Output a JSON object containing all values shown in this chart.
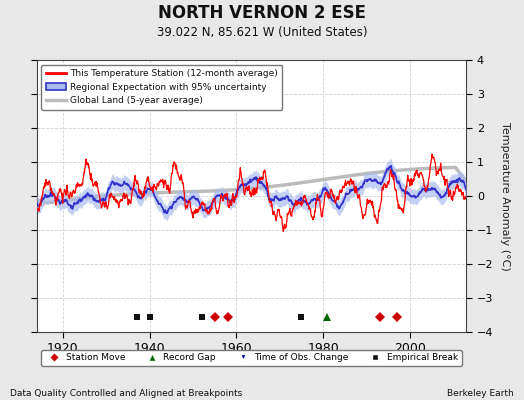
{
  "title": "NORTH VERNON 2 ESE",
  "subtitle": "39.022 N, 85.621 W (United States)",
  "ylabel": "Temperature Anomaly (°C)",
  "xlabel_bottom": "Data Quality Controlled and Aligned at Breakpoints",
  "xlabel_bottomright": "Berkeley Earth",
  "ylim": [
    -4,
    4
  ],
  "xlim": [
    1914,
    2013
  ],
  "xticks": [
    1920,
    1940,
    1960,
    1980,
    2000
  ],
  "yticks": [
    -4,
    -3,
    -2,
    -1,
    0,
    1,
    2,
    3,
    4
  ],
  "bg_color": "#e8e8e8",
  "plot_bg_color": "#ffffff",
  "station_color": "#ff0000",
  "regional_color": "#3333cc",
  "regional_fill_color": "#aabbee",
  "global_color": "#bbbbbb",
  "grid_color": "#cccccc",
  "marker_events": {
    "station_move": [
      1955,
      1958,
      1993,
      1997
    ],
    "record_gap": [
      1981
    ],
    "obs_change": [],
    "emp_break": [
      1937,
      1940,
      1952,
      1975
    ]
  },
  "event_y": -3.55,
  "seed": 42
}
